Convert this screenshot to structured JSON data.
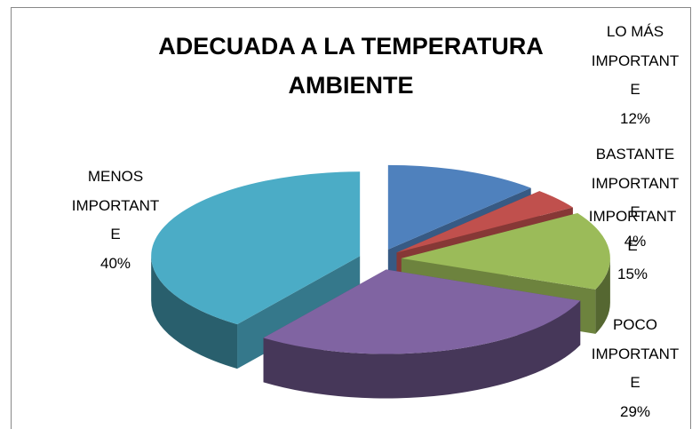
{
  "chart_data": {
    "type": "pie",
    "title": "ADECUADA A LA TEMPERATURA AMBIENTE",
    "categories": [
      "LO MÁS IMPORTANTE",
      "BASTANTE IMPORTANTE",
      "IMPORTANTE",
      "POCO IMPORTANTE",
      "MENOS IMPORTANTE"
    ],
    "values": [
      12,
      4,
      15,
      29,
      40
    ],
    "value_labels": [
      "12%",
      "4%",
      "15%",
      "29%",
      "40%"
    ],
    "colors": [
      "#4f81bd",
      "#c0504d",
      "#9bbb59",
      "#8064a2",
      "#4bacc6"
    ]
  }
}
